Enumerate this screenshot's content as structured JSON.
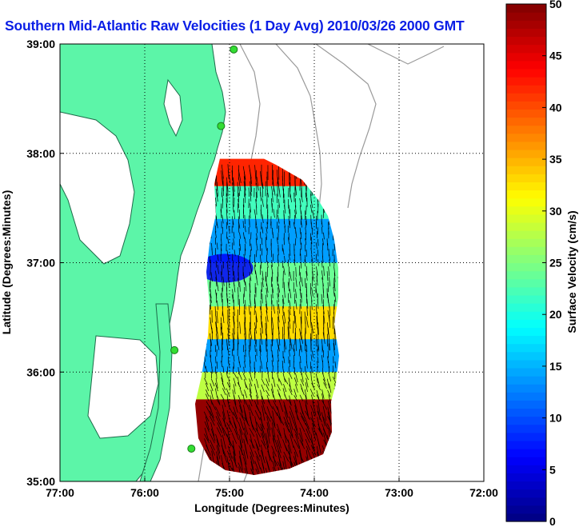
{
  "title": "Southern Mid-Atlantic Raw Velocities (1 Day Avg) 2010/03/26 2000 GMT",
  "chart_data": {
    "type": "heatmap",
    "title": "Southern Mid-Atlantic Raw Velocities (1 Day Avg) 2010/03/26 2000 GMT",
    "xlabel": "Longitude (Degrees:Minutes)",
    "ylabel": "Latitude (Degrees:Minutes)",
    "x_range": [
      -77.0,
      -72.0
    ],
    "y_range": [
      35.0,
      39.0
    ],
    "x_ticks": [
      -77,
      -76,
      -75,
      -74,
      -73,
      -72
    ],
    "y_ticks": [
      35,
      36,
      37,
      38,
      39
    ],
    "x_tick_labels": [
      "77:00",
      "76:00",
      "75:00",
      "74:00",
      "73:00",
      "72:00"
    ],
    "y_tick_labels": [
      "35:00",
      "36:00",
      "37:00",
      "38:00",
      "39:00"
    ],
    "grid": true,
    "colorbar": {
      "label": "Surface Velocity (cm/s)",
      "range": [
        0,
        50
      ],
      "ticks": [
        0,
        5,
        10,
        15,
        20,
        25,
        30,
        35,
        40,
        45,
        50
      ],
      "colormap": "jet"
    },
    "velocity_bands": [
      {
        "lat_min": 37.7,
        "lat_max": 37.95,
        "speed": 42
      },
      {
        "lat_min": 37.4,
        "lat_max": 37.7,
        "speed": 22
      },
      {
        "lat_min": 37.0,
        "lat_max": 37.4,
        "speed": 14
      },
      {
        "lat_min": 36.6,
        "lat_max": 37.0,
        "speed": 24
      },
      {
        "lat_min": 36.3,
        "lat_max": 36.6,
        "speed": 33
      },
      {
        "lat_min": 36.0,
        "lat_max": 36.3,
        "speed": 14
      },
      {
        "lat_min": 35.75,
        "lat_max": 36.0,
        "speed": 28
      },
      {
        "lat_min": 35.0,
        "lat_max": 35.75,
        "speed": 49
      }
    ],
    "site_markers": [
      {
        "lon": -74.95,
        "lat": 38.95
      },
      {
        "lon": -75.1,
        "lat": 38.25
      },
      {
        "lon": -75.65,
        "lat": 36.2
      },
      {
        "lon": -75.45,
        "lat": 35.3
      }
    ]
  },
  "colors": {
    "land": "#5cf5a8",
    "coast": "#1e6b4a",
    "bathymetry": "#9a9a9a",
    "title": "#0a1ee6",
    "site": "#33dd33"
  }
}
